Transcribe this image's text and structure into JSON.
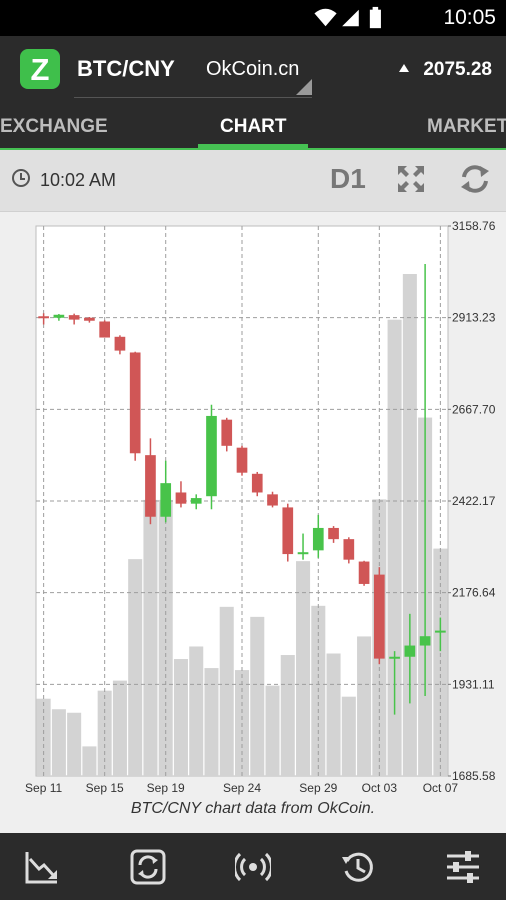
{
  "status": {
    "time": "10:05"
  },
  "header": {
    "logo_letter": "Z",
    "pair": "BTC/CNY",
    "exchange": "OkCoin.cn",
    "price": "2075.28"
  },
  "tabs": [
    {
      "label": "EXCHANGE",
      "active": false
    },
    {
      "label": "CHART",
      "active": true
    },
    {
      "label": "MARKET",
      "active": false
    }
  ],
  "toolbar": {
    "time": "10:02 AM",
    "period": "D1"
  },
  "chart_data": {
    "type": "candlestick",
    "y_ticks": [
      "3158.76",
      "2913.23",
      "2667.70",
      "2422.17",
      "2176.64",
      "1931.11",
      "1685.58"
    ],
    "ylim": [
      1685.58,
      3158.76
    ],
    "x_labels": [
      {
        "label": "Sep 11",
        "day": 0
      },
      {
        "label": "Sep 15",
        "day": 4
      },
      {
        "label": "Sep 19",
        "day": 8
      },
      {
        "label": "Sep 24",
        "day": 13
      },
      {
        "label": "Sep 29",
        "day": 18
      },
      {
        "label": "Oct 03",
        "day": 22
      },
      {
        "label": "Oct 07",
        "day": 26
      }
    ],
    "candles": [
      {
        "o": 2917,
        "h": 2925,
        "l": 2895,
        "c": 2912
      },
      {
        "o": 2913,
        "h": 2923,
        "l": 2905,
        "c": 2921
      },
      {
        "o": 2920,
        "h": 2924,
        "l": 2895,
        "c": 2908
      },
      {
        "o": 2913,
        "h": 2915,
        "l": 2900,
        "c": 2905
      },
      {
        "o": 2903,
        "h": 2906,
        "l": 2860,
        "c": 2860
      },
      {
        "o": 2862,
        "h": 2866,
        "l": 2815,
        "c": 2825
      },
      {
        "o": 2820,
        "h": 2822,
        "l": 2530,
        "c": 2550
      },
      {
        "o": 2545,
        "h": 2590,
        "l": 2360,
        "c": 2380
      },
      {
        "o": 2380,
        "h": 2530,
        "l": 2365,
        "c": 2470
      },
      {
        "o": 2445,
        "h": 2475,
        "l": 2405,
        "c": 2415
      },
      {
        "o": 2415,
        "h": 2440,
        "l": 2400,
        "c": 2430
      },
      {
        "o": 2435,
        "h": 2680,
        "l": 2400,
        "c": 2650
      },
      {
        "o": 2640,
        "h": 2645,
        "l": 2555,
        "c": 2570
      },
      {
        "o": 2565,
        "h": 2570,
        "l": 2490,
        "c": 2498
      },
      {
        "o": 2495,
        "h": 2500,
        "l": 2435,
        "c": 2445
      },
      {
        "o": 2440,
        "h": 2447,
        "l": 2405,
        "c": 2410
      },
      {
        "o": 2405,
        "h": 2415,
        "l": 2260,
        "c": 2280
      },
      {
        "o": 2285,
        "h": 2335,
        "l": 2265,
        "c": 2285
      },
      {
        "o": 2290,
        "h": 2385,
        "l": 2270,
        "c": 2350
      },
      {
        "o": 2350,
        "h": 2355,
        "l": 2310,
        "c": 2320
      },
      {
        "o": 2320,
        "h": 2325,
        "l": 2255,
        "c": 2265
      },
      {
        "o": 2260,
        "h": 2262,
        "l": 2195,
        "c": 2200
      },
      {
        "o": 2225,
        "h": 2245,
        "l": 1985,
        "c": 2000
      },
      {
        "o": 2000,
        "h": 2020,
        "l": 1850,
        "c": 2005
      },
      {
        "o": 2005,
        "h": 2120,
        "l": 1880,
        "c": 2035
      },
      {
        "o": 2035,
        "h": 3057,
        "l": 1900,
        "c": 2060
      },
      {
        "o": 2075,
        "h": 2110,
        "l": 2020,
        "c": 2075
      }
    ],
    "volume_bars": [
      0.154,
      0.133,
      0.126,
      0.059,
      0.17,
      0.19,
      0.432,
      0.55,
      0.55,
      0.233,
      0.258,
      0.215,
      0.337,
      0.211,
      0.317,
      0.18,
      0.241,
      0.428,
      0.339,
      0.244,
      0.158,
      0.278,
      0.551,
      0.909,
      1.0,
      0.714,
      0.453
    ]
  },
  "caption": "BTC/CNY chart data from OkCoin.",
  "bottom_nav": [
    {
      "name": "trend-down-icon"
    },
    {
      "name": "swap-refresh-icon"
    },
    {
      "name": "broadcast-icon"
    },
    {
      "name": "history-icon"
    },
    {
      "name": "sliders-icon"
    }
  ],
  "colors": {
    "up": "#48c34a",
    "down": "#d05656",
    "volume": "#d3d3d3",
    "accent": "#46c153"
  }
}
